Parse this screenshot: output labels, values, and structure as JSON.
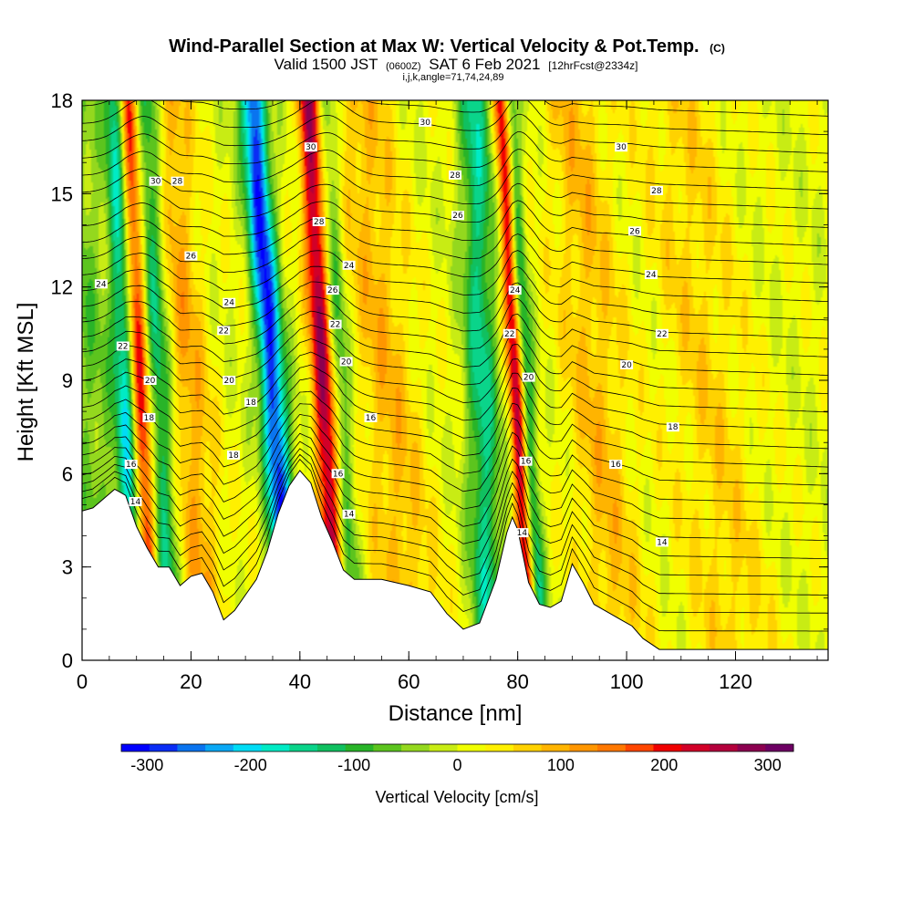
{
  "chart_data": {
    "type": "heatmap",
    "title": "Wind-Parallel Section at Max W: Vertical Velocity & Pot.Temp.",
    "title_mark": "(C)",
    "subtitle_parts": [
      "Valid 1500 JST",
      "(0600Z)",
      "SAT 6 Feb 2021",
      "[12hrFcst@2334z]"
    ],
    "subtitle2": "i,j,k,angle=71,74,24,89",
    "xlabel": "Distance [nm]",
    "ylabel": "Height [Kft MSL]",
    "xlim": [
      0,
      137
    ],
    "ylim": [
      0,
      18
    ],
    "xticks": [
      0,
      20,
      40,
      60,
      80,
      100,
      120
    ],
    "yticks": [
      0,
      3,
      6,
      9,
      12,
      15,
      18
    ],
    "colorbar": {
      "label": "Vertical Velocity [cm/s]",
      "ticks": [
        -300,
        -200,
        -100,
        0,
        100,
        200,
        300
      ],
      "range": [
        -325,
        325
      ],
      "colors": [
        "#0000ff",
        "#0a2df5",
        "#0a74ef",
        "#0aa8f5",
        "#00dcf5",
        "#00ebc5",
        "#0ad48a",
        "#10c060",
        "#28b428",
        "#5cc41e",
        "#94d81e",
        "#c8ec14",
        "#f0ff00",
        "#fff000",
        "#ffd200",
        "#ffb400",
        "#ff9600",
        "#ff7800",
        "#ff4600",
        "#f00000",
        "#d20028",
        "#b4003c",
        "#8c0050",
        "#6e0064"
      ]
    },
    "terrain_kft": [
      [
        0,
        4.8
      ],
      [
        2,
        4.9
      ],
      [
        4,
        5.2
      ],
      [
        6,
        5.5
      ],
      [
        8,
        5.3
      ],
      [
        10,
        4.3
      ],
      [
        12,
        3.6
      ],
      [
        14,
        3.0
      ],
      [
        16,
        3.0
      ],
      [
        18,
        2.4
      ],
      [
        20,
        2.7
      ],
      [
        22,
        2.8
      ],
      [
        24,
        2.2
      ],
      [
        26,
        1.3
      ],
      [
        28,
        1.6
      ],
      [
        30,
        2.1
      ],
      [
        32,
        2.6
      ],
      [
        34,
        3.5
      ],
      [
        36,
        4.7
      ],
      [
        38,
        5.6
      ],
      [
        40,
        6.1
      ],
      [
        42,
        5.7
      ],
      [
        44,
        4.6
      ],
      [
        46,
        3.8
      ],
      [
        48,
        2.9
      ],
      [
        50,
        2.6
      ],
      [
        55,
        2.6
      ],
      [
        60,
        2.4
      ],
      [
        64,
        2.2
      ],
      [
        67,
        1.5
      ],
      [
        70,
        1.0
      ],
      [
        73,
        1.2
      ],
      [
        76,
        2.6
      ],
      [
        78,
        4.1
      ],
      [
        79,
        4.6
      ],
      [
        80,
        4.2
      ],
      [
        82,
        2.5
      ],
      [
        84,
        1.8
      ],
      [
        86,
        1.7
      ],
      [
        88,
        1.9
      ],
      [
        90,
        3.1
      ],
      [
        92,
        2.5
      ],
      [
        94,
        1.8
      ],
      [
        96,
        1.6
      ],
      [
        99,
        1.3
      ],
      [
        101,
        1.1
      ],
      [
        103,
        0.7
      ],
      [
        106,
        0.35
      ],
      [
        137,
        0.35
      ]
    ],
    "updrafts": [
      {
        "x_base": 11.5,
        "slope_nm_per_kft": 0.25,
        "width_nm": 1.9,
        "peak_cms": 260
      },
      {
        "x_base": 45.5,
        "slope_nm_per_kft": 0.3,
        "width_nm": 2.1,
        "peak_cms": 260
      },
      {
        "x_base": 81.0,
        "slope_nm_per_kft": 0.3,
        "width_nm": 1.5,
        "peak_cms": 290
      },
      {
        "x_base": 21.0,
        "slope_nm_per_kft": 0.4,
        "width_nm": 4.0,
        "peak_cms": 95
      },
      {
        "x_base": 58.0,
        "slope_nm_per_kft": 0.55,
        "width_nm": 6.0,
        "peak_cms": 80
      },
      {
        "x_base": 96.0,
        "slope_nm_per_kft": 0.45,
        "width_nm": 6.0,
        "peak_cms": 75
      },
      {
        "x_base": 117.0,
        "slope_nm_per_kft": 0.6,
        "width_nm": 8.0,
        "peak_cms": 55
      }
    ],
    "downdrafts": [
      {
        "x_base": 9.0,
        "slope_nm_per_kft": 0.2,
        "width_nm": 2.2,
        "peak_cms": -200
      },
      {
        "x_base": 15.0,
        "slope_nm_per_kft": 0.25,
        "width_nm": 2.5,
        "peak_cms": -150
      },
      {
        "x_base": 36.5,
        "slope_nm_per_kft": 0.4,
        "width_nm": 2.4,
        "peak_cms": -300
      },
      {
        "x_base": 48.5,
        "slope_nm_per_kft": 0.3,
        "width_nm": 2.0,
        "peak_cms": -110
      },
      {
        "x_base": 74.0,
        "slope_nm_per_kft": 0.15,
        "width_nm": 3.0,
        "peak_cms": -150
      },
      {
        "x_base": 82.5,
        "slope_nm_per_kft": 0.33,
        "width_nm": 1.6,
        "peak_cms": -180
      },
      {
        "x_base": 3.0,
        "slope_nm_per_kft": 0.4,
        "width_nm": 5.0,
        "peak_cms": -70
      }
    ],
    "theta_contour_labels": [
      {
        "x": 13.5,
        "y": 15.4,
        "text": "30"
      },
      {
        "x": 42.0,
        "y": 16.5,
        "text": "30"
      },
      {
        "x": 63.0,
        "y": 17.3,
        "text": "30"
      },
      {
        "x": 99.0,
        "y": 16.5,
        "text": "30"
      },
      {
        "x": 17.5,
        "y": 15.4,
        "text": "28"
      },
      {
        "x": 43.5,
        "y": 14.1,
        "text": "28"
      },
      {
        "x": 68.5,
        "y": 15.6,
        "text": "28"
      },
      {
        "x": 105.5,
        "y": 15.1,
        "text": "28"
      },
      {
        "x": 20.0,
        "y": 13.0,
        "text": "26"
      },
      {
        "x": 46.0,
        "y": 11.9,
        "text": "26"
      },
      {
        "x": 69.0,
        "y": 14.3,
        "text": "26"
      },
      {
        "x": 101.5,
        "y": 13.8,
        "text": "26"
      },
      {
        "x": 3.5,
        "y": 12.1,
        "text": "24"
      },
      {
        "x": 27.0,
        "y": 11.5,
        "text": "24"
      },
      {
        "x": 49.0,
        "y": 12.7,
        "text": "24"
      },
      {
        "x": 79.5,
        "y": 11.9,
        "text": "24"
      },
      {
        "x": 104.5,
        "y": 12.4,
        "text": "24"
      },
      {
        "x": 7.5,
        "y": 10.1,
        "text": "22"
      },
      {
        "x": 26.0,
        "y": 10.6,
        "text": "22"
      },
      {
        "x": 46.5,
        "y": 10.8,
        "text": "22"
      },
      {
        "x": 78.5,
        "y": 10.5,
        "text": "22"
      },
      {
        "x": 106.5,
        "y": 10.5,
        "text": "22"
      },
      {
        "x": 12.5,
        "y": 9.0,
        "text": "20"
      },
      {
        "x": 27.0,
        "y": 9.0,
        "text": "20"
      },
      {
        "x": 48.5,
        "y": 9.6,
        "text": "20"
      },
      {
        "x": 82.0,
        "y": 9.1,
        "text": "20"
      },
      {
        "x": 100.0,
        "y": 9.5,
        "text": "20"
      },
      {
        "x": 31.0,
        "y": 8.3,
        "text": "18"
      },
      {
        "x": 27.8,
        "y": 6.6,
        "text": "18"
      },
      {
        "x": 12.3,
        "y": 7.8,
        "text": "18"
      },
      {
        "x": 108.5,
        "y": 7.5,
        "text": "18"
      },
      {
        "x": 9.0,
        "y": 6.3,
        "text": "16"
      },
      {
        "x": 47.0,
        "y": 6.0,
        "text": "16"
      },
      {
        "x": 53.0,
        "y": 7.8,
        "text": "16"
      },
      {
        "x": 81.5,
        "y": 6.4,
        "text": "16"
      },
      {
        "x": 98.0,
        "y": 6.3,
        "text": "16"
      },
      {
        "x": 9.8,
        "y": 5.1,
        "text": "14"
      },
      {
        "x": 49.0,
        "y": 4.7,
        "text": "14"
      },
      {
        "x": 80.8,
        "y": 4.1,
        "text": "14"
      },
      {
        "x": 106.5,
        "y": 3.8,
        "text": "14"
      }
    ]
  }
}
